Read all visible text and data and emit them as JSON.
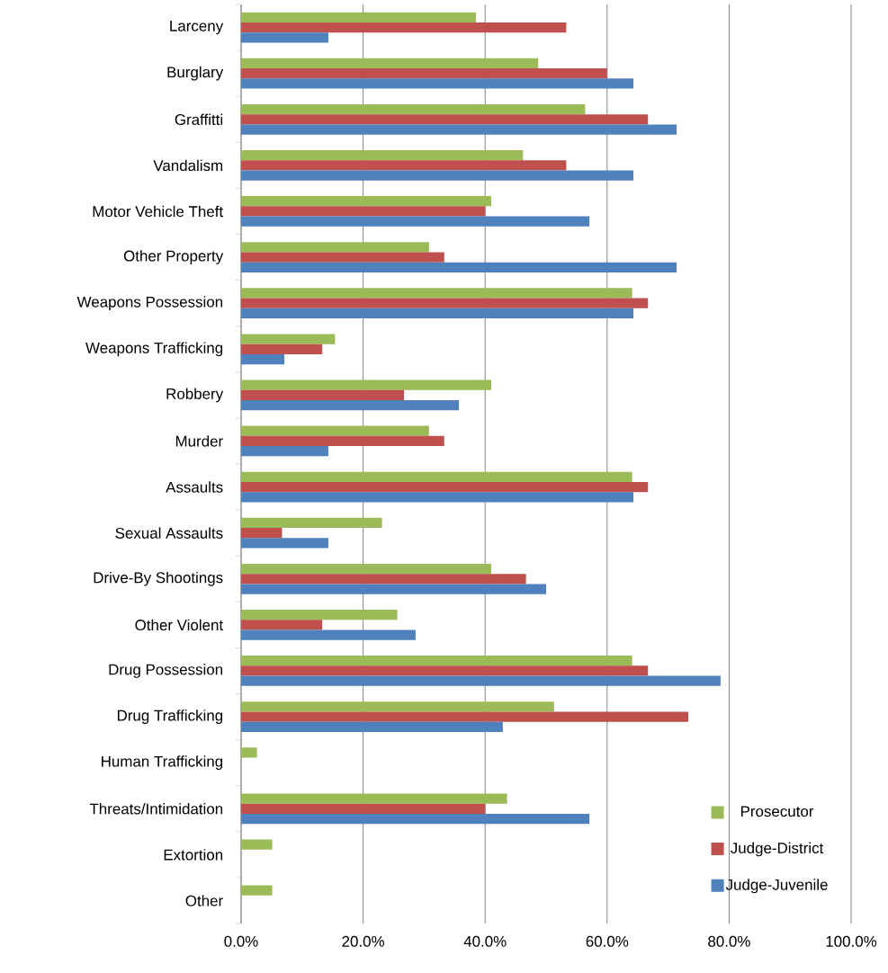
{
  "chart_data": {
    "type": "bar",
    "orientation": "horizontal",
    "categories": [
      "Larceny",
      "Burglary",
      "Graffitti",
      "Vandalism",
      "Motor Vehicle Theft",
      "Other Property",
      "Weapons Possession",
      "Weapons Trafficking",
      "Robbery",
      "Murder",
      "Assaults",
      "Sexual Assaults",
      "Drive-By Shootings",
      "Other Violent",
      "Drug Possession",
      "Drug Trafficking",
      "Human Trafficking",
      "Threats/Intimidation",
      "Extortion",
      "Other"
    ],
    "series": [
      {
        "name": "Prosecutor",
        "color": "#9bbb59",
        "values": [
          38.5,
          48.7,
          56.4,
          46.2,
          41.0,
          30.8,
          64.1,
          15.4,
          41.0,
          30.8,
          64.1,
          23.1,
          41.0,
          25.6,
          64.1,
          51.3,
          2.6,
          43.6,
          5.1,
          5.1
        ]
      },
      {
        "name": "Judge-District",
        "color": "#c0504d",
        "values": [
          53.3,
          60.0,
          66.7,
          53.3,
          40.0,
          33.3,
          66.7,
          13.3,
          26.7,
          33.3,
          66.7,
          6.7,
          46.7,
          13.3,
          66.7,
          73.3,
          null,
          40.0,
          null,
          null
        ]
      },
      {
        "name": "Judge-Juvenile",
        "color": "#4f81bd",
        "values": [
          14.3,
          64.3,
          71.4,
          64.3,
          57.1,
          71.4,
          64.3,
          7.1,
          35.7,
          14.3,
          64.3,
          14.3,
          50.0,
          28.6,
          78.6,
          42.9,
          null,
          57.1,
          null,
          null
        ]
      }
    ],
    "xlim": [
      0,
      100
    ],
    "xticks": [
      {
        "value": 0,
        "label": "0.0%"
      },
      {
        "value": 20,
        "label": "20.0%"
      },
      {
        "value": 40,
        "label": "40.0%"
      },
      {
        "value": 60,
        "label": "60.0%"
      },
      {
        "value": 80,
        "label": "80.0%"
      },
      {
        "value": 100,
        "label": "100.0%"
      }
    ],
    "grid": "x",
    "legend": "bottom right"
  }
}
